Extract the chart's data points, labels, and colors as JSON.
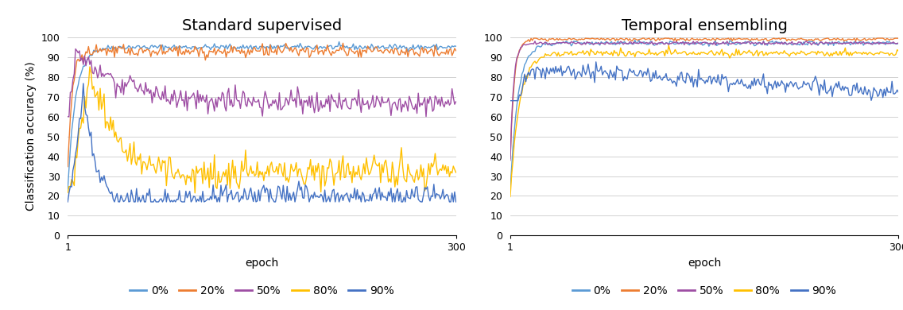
{
  "title_left": "Standard supervised",
  "title_right": "Temporal ensembling",
  "xlabel": "epoch",
  "ylabel": "Classification accuracy (%)",
  "xlim_min": 1,
  "xlim_max": 300,
  "ylim_min": 0,
  "ylim_max": 100,
  "yticks": [
    0,
    10,
    20,
    30,
    40,
    50,
    60,
    70,
    80,
    90,
    100
  ],
  "legend_labels": [
    "0%",
    "20%",
    "50%",
    "80%",
    "90%"
  ],
  "line_colors": [
    "#5b9bd5",
    "#ed7d31",
    "#9e4ea4",
    "#ffc000",
    "#4472c4"
  ],
  "title_fontsize": 14,
  "label_fontsize": 10,
  "tick_fontsize": 9,
  "legend_fontsize": 10,
  "n_epochs": 300,
  "lw": 1.0,
  "seed": 42
}
